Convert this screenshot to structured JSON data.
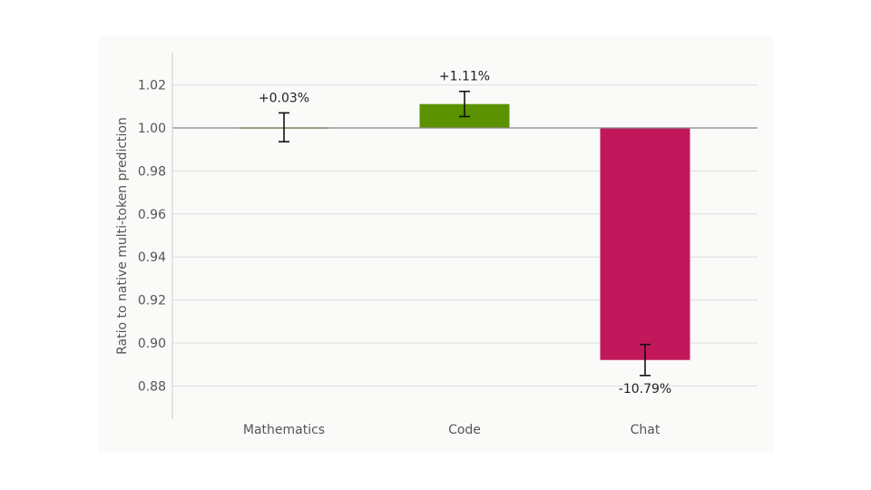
{
  "chart_data": {
    "type": "bar",
    "title": "",
    "xlabel": "",
    "ylabel": "Ratio to native multi-token prediction",
    "categories": [
      "Mathematics",
      "Code",
      "Chat"
    ],
    "values": [
      1.0003,
      1.0111,
      0.8921
    ],
    "error_low": [
      0.9936,
      1.0053,
      0.8849
    ],
    "error_high": [
      1.007,
      1.017,
      0.8993
    ],
    "data_labels": [
      "+0.03%",
      "+1.11%",
      "-10.79%"
    ],
    "colors": [
      "#5a9200",
      "#5a9200",
      "#c2185b"
    ],
    "baseline": 1.0,
    "ylim": [
      0.865,
      1.035
    ],
    "yticks": [
      0.88,
      0.9,
      0.92,
      0.94,
      0.96,
      0.98,
      1.0,
      1.02
    ],
    "ytick_labels": [
      "0.88",
      "0.90",
      "0.92",
      "0.94",
      "0.96",
      "0.98",
      "1.00",
      "1.02"
    ],
    "grid": true,
    "background": "#fafaf8"
  }
}
